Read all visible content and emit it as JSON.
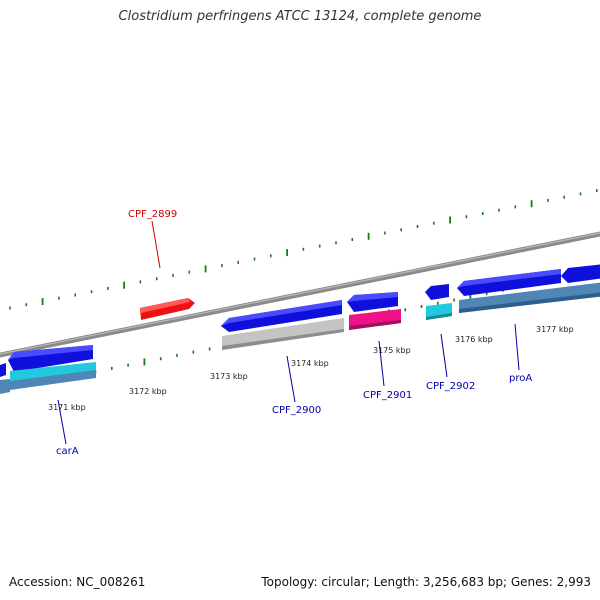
{
  "title": "Clostridium perfringens ATCC 13124, complete genome",
  "accession": "Accession: NC_008261",
  "summary": "Topology: circular; Length: 3,256,683 bp; Genes: 2,993",
  "colors": {
    "backbone": "#8a8a8a",
    "tick": "#1a7a1a",
    "forward_label": "#cc0000",
    "reverse_label": "#0000aa",
    "cds_blue": "#1010dd",
    "cds_red": "#ee1111",
    "gene_cyan": "#22c8dd",
    "gene_steel": "#4f86b6",
    "gene_grey": "#c4c4c4",
    "gene_magenta": "#ee1188"
  },
  "ticks": [
    {
      "label": "3171 kbp"
    },
    {
      "label": "3172 kbp"
    },
    {
      "label": "3173 kbp"
    },
    {
      "label": "3174 kbp"
    },
    {
      "label": "3175 kbp"
    },
    {
      "label": "3176 kbp"
    },
    {
      "label": "3177 kbp"
    }
  ],
  "gene_labels": [
    {
      "label": "CPF_2899",
      "strand": "forward"
    },
    {
      "label": "carA",
      "strand": "reverse"
    },
    {
      "label": "CPF_2900",
      "strand": "reverse"
    },
    {
      "label": "CPF_2901",
      "strand": "reverse"
    },
    {
      "label": "CPF_2902",
      "strand": "reverse"
    },
    {
      "label": "proA",
      "strand": "reverse"
    }
  ]
}
